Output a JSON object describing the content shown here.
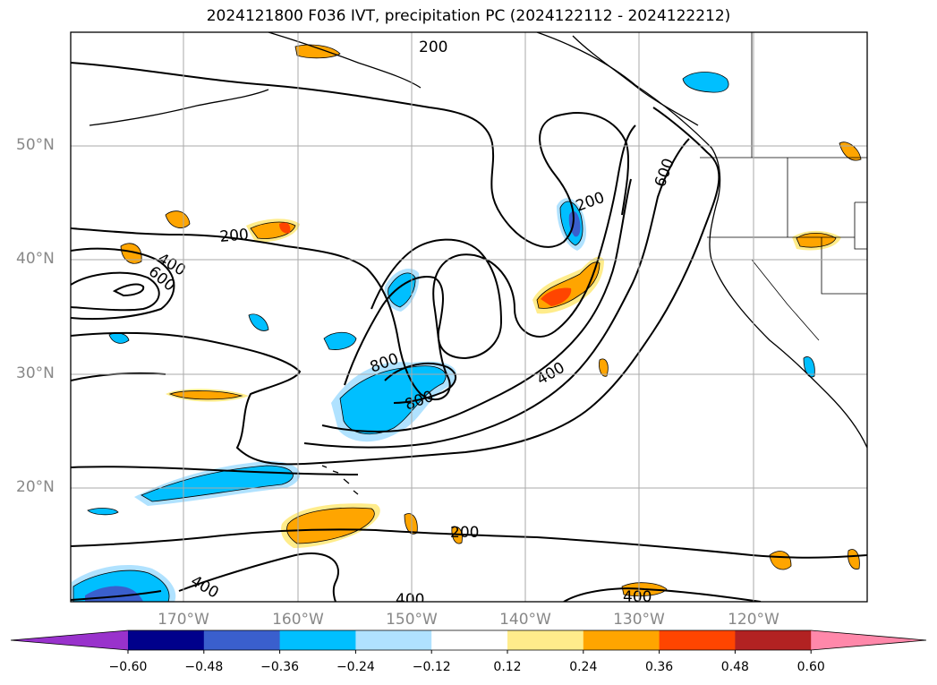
{
  "title": "2024121800 F036 IVT, precipitation PC (2024122112 - 2024122212)",
  "lat_labels": [
    "50°N",
    "40°N",
    "30°N",
    "20°N"
  ],
  "lon_labels": [
    "170°W",
    "160°W",
    "150°W",
    "140°W",
    "130°W",
    "120°W"
  ],
  "contour_labels": [
    "200",
    "200",
    "200",
    "200",
    "400",
    "600",
    "800",
    "800",
    "400",
    "600",
    "400",
    "400",
    "200",
    "400"
  ],
  "colorbar": {
    "ticks": [
      "−0.60",
      "−0.48",
      "−0.36",
      "−0.24",
      "−0.12",
      "0.12",
      "0.24",
      "0.36",
      "0.48",
      "0.60"
    ],
    "colors": [
      "#9932cc",
      "#00008b",
      "#3a5fcd",
      "#00bfff",
      "#b0e2ff",
      "#ffffff",
      "#ffec8b",
      "#ffa500",
      "#ff4500",
      "#b22222",
      "#ff88aa"
    ]
  },
  "map_colors": {
    "contour": "#000000",
    "grid": "#aaaaaa",
    "coast": "#000000"
  }
}
